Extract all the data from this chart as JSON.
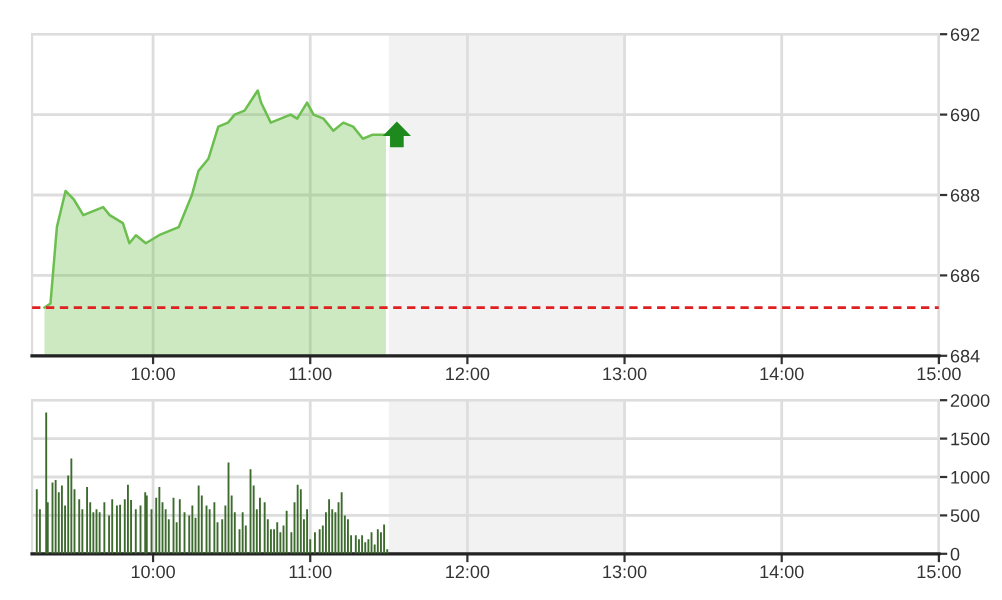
{
  "chart_data": [
    {
      "type": "area",
      "x": [
        9.309,
        9.347,
        9.388,
        9.443,
        9.494,
        9.556,
        9.619,
        9.682,
        9.724,
        9.808,
        9.849,
        9.891,
        9.954,
        10.038,
        10.1,
        10.163,
        10.247,
        10.289,
        10.352,
        10.415,
        10.477,
        10.519,
        10.582,
        10.666,
        10.687,
        10.749,
        10.812,
        10.875,
        10.917,
        10.98,
        11.021,
        11.084,
        11.147,
        11.21,
        11.273,
        11.335,
        11.398,
        11.482
      ],
      "series": [
        {
          "color": "#6cbf4f",
          "values": [
            685.2,
            685.3,
            687.2,
            688.1,
            687.9,
            687.5,
            687.6,
            687.7,
            687.5,
            687.3,
            686.8,
            687.0,
            686.8,
            687.0,
            687.1,
            687.2,
            688.0,
            688.6,
            688.9,
            689.7,
            689.8,
            690.0,
            690.1,
            690.6,
            690.3,
            689.8,
            689.9,
            690.0,
            689.9,
            690.3,
            690.0,
            689.9,
            689.6,
            689.8,
            689.7,
            689.4,
            689.5,
            689.5
          ]
        }
      ],
      "xlim": [
        9.23,
        15
      ],
      "xticks": [
        {
          "value": 10,
          "label": "10:00"
        },
        {
          "value": 11,
          "label": "11:00"
        },
        {
          "value": 12,
          "label": "12:00"
        },
        {
          "value": 13,
          "label": "13:00"
        },
        {
          "value": 14,
          "label": "14:00"
        },
        {
          "value": 15,
          "label": "15:00"
        }
      ],
      "ylim": [
        684,
        692
      ],
      "yticks": [
        684,
        686,
        688,
        690,
        692
      ],
      "grid": true,
      "ref_lines": [
        {
          "axis": "y",
          "value": 685.2,
          "color": "#e02020",
          "line_style": "dashed"
        }
      ],
      "bands": [
        {
          "axis": "x",
          "from": 11.5,
          "to": 13,
          "color": "#f2f2f2"
        }
      ]
    },
    {
      "type": "bar",
      "x": [
        9.26,
        9.28,
        9.32,
        9.33,
        9.36,
        9.38,
        9.4,
        9.42,
        9.44,
        9.46,
        9.48,
        9.5,
        9.53,
        9.55,
        9.58,
        9.6,
        9.62,
        9.64,
        9.66,
        9.69,
        9.72,
        9.74,
        9.77,
        9.79,
        9.82,
        9.84,
        9.86,
        9.89,
        9.92,
        9.95,
        9.96,
        9.99,
        10.02,
        10.04,
        10.06,
        10.08,
        10.1,
        10.13,
        10.15,
        10.17,
        10.2,
        10.23,
        10.25,
        10.27,
        10.29,
        10.31,
        10.34,
        10.36,
        10.39,
        10.41,
        10.44,
        10.46,
        10.48,
        10.5,
        10.52,
        10.55,
        10.57,
        10.59,
        10.62,
        10.64,
        10.66,
        10.68,
        10.71,
        10.73,
        10.75,
        10.77,
        10.79,
        10.81,
        10.83,
        10.85,
        10.88,
        10.9,
        10.92,
        10.94,
        10.96,
        10.98,
        11.0,
        11.03,
        11.06,
        11.08,
        11.1,
        11.12,
        11.14,
        11.16,
        11.18,
        11.2,
        11.22,
        11.24,
        11.26,
        11.29,
        11.31,
        11.33,
        11.35,
        11.37,
        11.39,
        11.41,
        11.43,
        11.45,
        11.47,
        11.49
      ],
      "series": [
        {
          "color": "#3d6b2e",
          "values": [
            840,
            580,
            1840,
            670,
            930,
            960,
            800,
            890,
            630,
            1020,
            1240,
            840,
            710,
            580,
            870,
            670,
            540,
            580,
            540,
            670,
            500,
            710,
            630,
            640,
            710,
            900,
            700,
            580,
            630,
            800,
            760,
            580,
            730,
            870,
            670,
            580,
            450,
            730,
            410,
            710,
            540,
            500,
            630,
            470,
            890,
            760,
            630,
            580,
            670,
            410,
            450,
            630,
            1190,
            760,
            540,
            320,
            540,
            370,
            1100,
            890,
            580,
            730,
            670,
            450,
            320,
            320,
            410,
            280,
            370,
            560,
            280,
            670,
            900,
            840,
            450,
            580,
            190,
            280,
            320,
            370,
            540,
            710,
            580,
            540,
            670,
            800,
            500,
            450,
            240,
            240,
            190,
            240,
            150,
            190,
            280,
            120,
            320,
            280,
            380,
            60
          ]
        }
      ],
      "xlim": [
        9.23,
        15
      ],
      "xticks": [
        {
          "value": 10,
          "label": "10:00"
        },
        {
          "value": 11,
          "label": "11:00"
        },
        {
          "value": 12,
          "label": "12:00"
        },
        {
          "value": 13,
          "label": "13:00"
        },
        {
          "value": 14,
          "label": "14:00"
        },
        {
          "value": 15,
          "label": "15:00"
        }
      ],
      "ylim": [
        0,
        2000
      ],
      "yticks": [
        0,
        500,
        1000,
        1500,
        2000
      ],
      "grid": true,
      "bands": [
        {
          "axis": "x",
          "from": 11.5,
          "to": 13,
          "color": "#f2f2f2"
        }
      ]
    }
  ]
}
